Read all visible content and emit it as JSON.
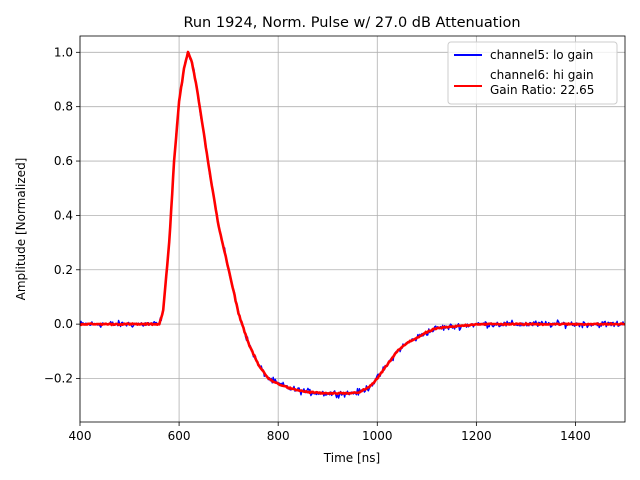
{
  "chart_data": {
    "type": "line",
    "title": "Run 1924, Norm. Pulse w/ 27.0 dB Attenuation",
    "xlabel": "Time [ns]",
    "ylabel": "Amplitude [Normalized]",
    "xlim": [
      400,
      1500
    ],
    "ylim": [
      -0.36,
      1.06
    ],
    "xticks": [
      400,
      600,
      800,
      1000,
      1200,
      1400
    ],
    "xtick_labels": [
      "400",
      "600",
      "800",
      "1000",
      "1200",
      "1400"
    ],
    "yticks": [
      -0.2,
      0.0,
      0.2,
      0.4,
      0.6,
      0.8,
      1.0
    ],
    "ytick_labels": [
      "−0.2",
      "0.0",
      "0.2",
      "0.4",
      "0.6",
      "0.8",
      "1.0"
    ],
    "grid": true,
    "legend_position": "top-right",
    "series": [
      {
        "name": "channel5: lo gain",
        "color": "#0000ff",
        "noisy": true,
        "x": [
          400,
          560,
          568,
          580,
          590,
          600,
          610,
          618,
          625,
          635,
          650,
          665,
          680,
          700,
          720,
          740,
          760,
          780,
          800,
          830,
          860,
          900,
          940,
          965,
          985,
          1000,
          1020,
          1040,
          1060,
          1080,
          1100,
          1120,
          1150,
          1200,
          1300,
          1400,
          1500
        ],
        "y": [
          0.0,
          0.0,
          0.05,
          0.3,
          0.6,
          0.82,
          0.94,
          0.99,
          0.97,
          0.88,
          0.7,
          0.52,
          0.36,
          0.2,
          0.04,
          -0.07,
          -0.15,
          -0.2,
          -0.22,
          -0.24,
          -0.25,
          -0.255,
          -0.255,
          -0.25,
          -0.23,
          -0.2,
          -0.15,
          -0.1,
          -0.07,
          -0.05,
          -0.03,
          -0.015,
          -0.01,
          0.0,
          0.0,
          0.0,
          0.0
        ]
      },
      {
        "name": "channel6: hi gain",
        "color": "#ff0000",
        "noisy": false,
        "x": [
          400,
          560,
          568,
          580,
          590,
          600,
          610,
          618,
          625,
          635,
          650,
          665,
          680,
          700,
          720,
          740,
          760,
          780,
          800,
          830,
          860,
          900,
          940,
          965,
          985,
          1000,
          1020,
          1040,
          1060,
          1080,
          1100,
          1120,
          1150,
          1200,
          1300,
          1400,
          1500
        ],
        "y": [
          0.0,
          0.0,
          0.05,
          0.3,
          0.6,
          0.82,
          0.94,
          1.0,
          0.97,
          0.88,
          0.7,
          0.52,
          0.36,
          0.2,
          0.04,
          -0.07,
          -0.15,
          -0.2,
          -0.22,
          -0.24,
          -0.25,
          -0.255,
          -0.255,
          -0.25,
          -0.23,
          -0.2,
          -0.15,
          -0.1,
          -0.07,
          -0.05,
          -0.03,
          -0.015,
          -0.01,
          0.0,
          0.0,
          0.0,
          0.0
        ]
      }
    ],
    "legend_extra": "Gain Ratio: 22.65"
  }
}
